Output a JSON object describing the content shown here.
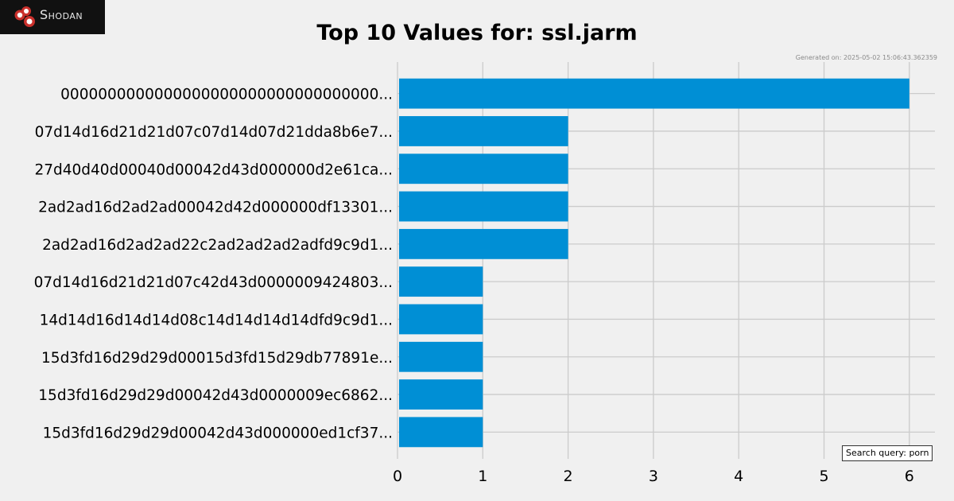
{
  "logo": {
    "text": "Shodan"
  },
  "chart_data": {
    "type": "bar",
    "orientation": "horizontal",
    "title": "Top 10 Values for: ssl.jarm",
    "xlabel": "",
    "ylabel": "",
    "categories": [
      "0000000000000000000000000000000000...",
      "07d14d16d21d21d07c07d14d07d21dda8b6e7...",
      "27d40d40d00040d00042d43d000000d2e61ca...",
      "2ad2ad16d2ad2ad00042d42d000000df13301...",
      "2ad2ad16d2ad2ad22c2ad2ad2ad2adfd9c9d1...",
      "07d14d16d21d21d07c42d43d0000009424803...",
      "14d14d16d14d14d08c14d14d14d14dfd9c9d1...",
      "15d3fd16d29d29d00015d3fd15d29db77891e...",
      "15d3fd16d29d29d00042d43d0000009ec6862...",
      "15d3fd16d29d29d00042d43d000000ed1cf37..."
    ],
    "values": [
      6,
      2,
      2,
      2,
      2,
      1,
      1,
      1,
      1,
      1
    ],
    "xlim": [
      0,
      6.3
    ],
    "xticks": [
      0,
      1,
      2,
      3,
      4,
      5,
      6
    ],
    "grid": true,
    "bar_color": "#008fd5",
    "grid_color": "#cbcbcb",
    "background": "#f0f0f0"
  },
  "footer": {
    "generated": "Generated on: 2025-05-02 15:06:43.362359",
    "query": "Search query: porn"
  }
}
